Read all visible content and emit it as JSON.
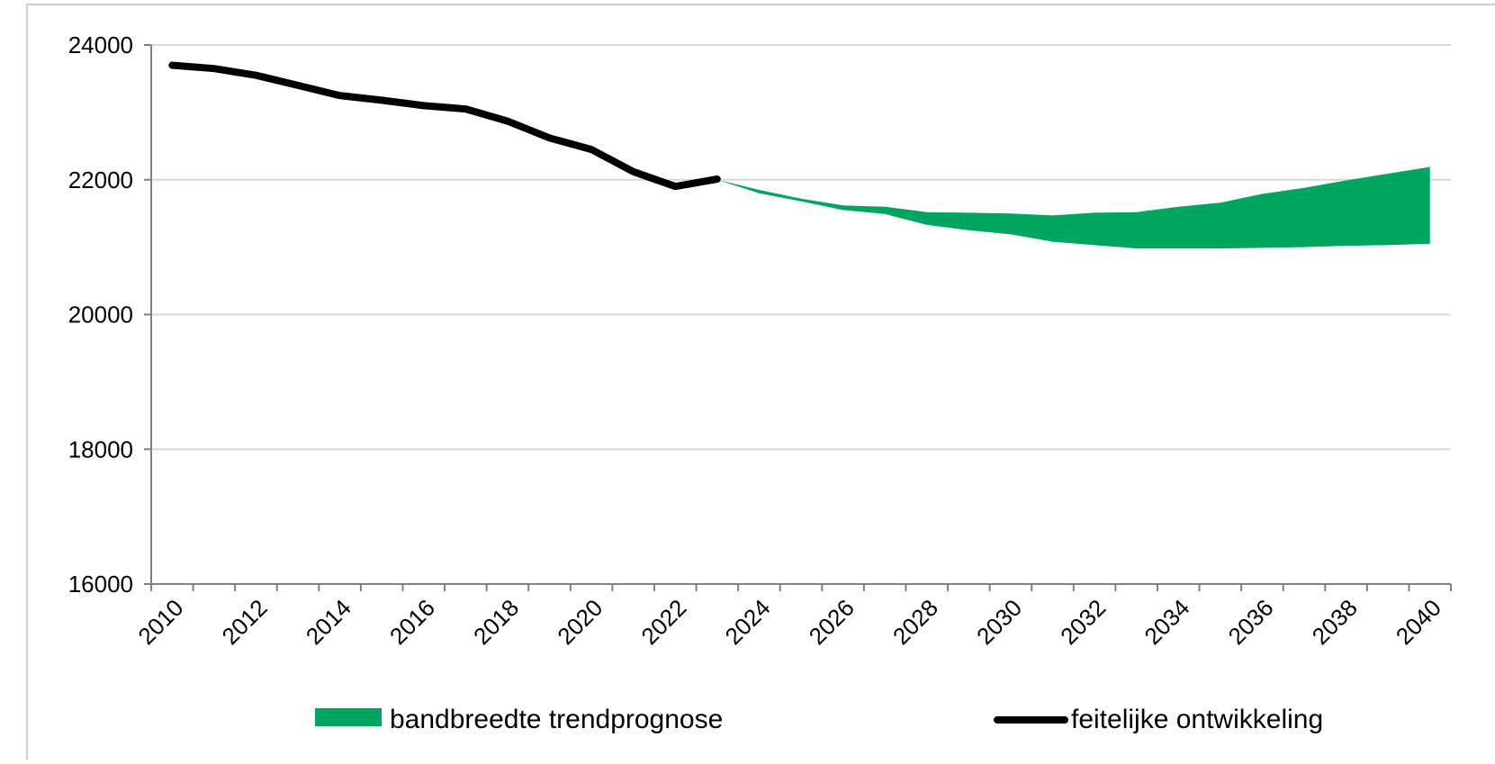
{
  "colors": {
    "band": "#00a65f",
    "actual": "#000000",
    "grid": "#d9d9d9",
    "axis": "#808080",
    "frame": "#d0d0d0"
  },
  "chart_data": {
    "type": "area",
    "xlim": [
      2010,
      2040
    ],
    "ylim": [
      16000,
      24000
    ],
    "y_ticks": [
      "16000",
      "18000",
      "20000",
      "22000",
      "24000"
    ],
    "x_ticks": [
      "2010",
      "2012",
      "2014",
      "2016",
      "2018",
      "2020",
      "2022",
      "2024",
      "2026",
      "2028",
      "2030",
      "2032",
      "2034",
      "2036",
      "2038",
      "2040"
    ],
    "grid": true,
    "legend_position": "bottom",
    "series": [
      {
        "name": "feitelijke ontwikkeling",
        "kind": "line",
        "color": "#000000",
        "x": [
          2010,
          2011,
          2012,
          2013,
          2014,
          2015,
          2016,
          2017,
          2018,
          2019,
          2020,
          2021,
          2022,
          2023
        ],
        "values": [
          23700,
          23650,
          23550,
          23400,
          23250,
          23180,
          23100,
          23050,
          22870,
          22620,
          22450,
          22120,
          21900,
          22010
        ]
      },
      {
        "name": "bandbreedte trendprognose",
        "kind": "band",
        "color": "#00a65f",
        "x": [
          2023,
          2024,
          2025,
          2026,
          2027,
          2028,
          2029,
          2030,
          2031,
          2032,
          2033,
          2034,
          2035,
          2036,
          2037,
          2038,
          2039,
          2040
        ],
        "upper": [
          22000,
          21850,
          21720,
          21620,
          21600,
          21520,
          21510,
          21500,
          21470,
          21510,
          21520,
          21600,
          21660,
          21790,
          21880,
          21990,
          22090,
          22190
        ],
        "lower": [
          22000,
          21800,
          21680,
          21550,
          21490,
          21330,
          21250,
          21190,
          21080,
          21030,
          20980,
          20980,
          20980,
          20990,
          21000,
          21020,
          21030,
          21050
        ]
      }
    ]
  },
  "legend": {
    "band_label": "bandbreedte trendprognose",
    "line_label": "feitelijke ontwikkeling"
  }
}
